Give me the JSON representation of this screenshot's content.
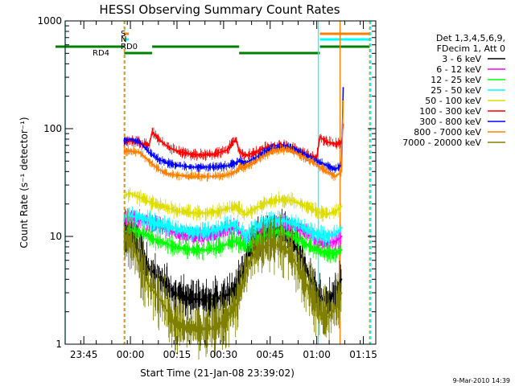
{
  "chart_data": {
    "type": "line",
    "title": "HESSI Observing Summary Count Rates",
    "xlabel": "Start Time (21-Jan-08 23:39:02)",
    "ylabel": "Count Rate (s⁻¹ detector⁻¹)",
    "x_unit": "minutes after start",
    "xlim": [
      0,
      100
    ],
    "ylim": [
      1,
      1000
    ],
    "y_scale": "log",
    "x_ticks": [
      {
        "x": 6,
        "label": "23:45"
      },
      {
        "x": 21,
        "label": "00:00"
      },
      {
        "x": 36,
        "label": "00:15"
      },
      {
        "x": 51,
        "label": "00:30"
      },
      {
        "x": 66,
        "label": "00:45"
      },
      {
        "x": 81,
        "label": "01:00"
      },
      {
        "x": 96,
        "label": "01:15"
      }
    ],
    "y_ticks": [
      {
        "y": 1,
        "label": "1"
      },
      {
        "y": 10,
        "label": "10"
      },
      {
        "y": 100,
        "label": "100"
      },
      {
        "y": 1000,
        "label": "1000"
      }
    ],
    "legend_header": [
      "Det 1,3,4,5,6,9,",
      "FDecim 1, Att 0"
    ],
    "legend_position": "right",
    "series": [
      {
        "name": "3 - 6 keV",
        "color": "#000000",
        "x": [
          19,
          20,
          22,
          24,
          27,
          31,
          35,
          39,
          43,
          47,
          51,
          55,
          57,
          59,
          61,
          64,
          67,
          70,
          73,
          76,
          79,
          81,
          83,
          85,
          87,
          89
        ],
        "y": [
          11,
          12,
          10,
          7,
          5,
          4,
          3,
          2.7,
          2.6,
          2.6,
          2.7,
          3.3,
          4.5,
          7,
          9,
          11,
          12,
          11,
          9,
          6.5,
          4,
          3,
          2.6,
          2.6,
          3,
          4
        ]
      },
      {
        "name": "6 - 12 keV",
        "color": "#ff00ff",
        "x": [
          19,
          21,
          24,
          27,
          30,
          33,
          35,
          37,
          41,
          45,
          49,
          52,
          55,
          58,
          61,
          64,
          67,
          70,
          73,
          76,
          79,
          81,
          84,
          87,
          89
        ],
        "y": [
          14,
          15,
          14.5,
          13.5,
          12.5,
          11.5,
          11,
          10.5,
          10,
          10,
          10.5,
          11.5,
          12,
          9.5,
          11,
          12.5,
          13.5,
          13.5,
          12.5,
          11.5,
          10,
          9,
          8.5,
          9,
          10
        ]
      },
      {
        "name": "12 - 25 keV",
        "color": "#00ff00",
        "x": [
          19,
          21,
          24,
          27,
          30,
          33,
          35,
          37,
          41,
          45,
          49,
          52,
          55,
          58,
          61,
          64,
          67,
          70,
          73,
          76,
          79,
          81,
          84,
          87,
          89
        ],
        "y": [
          11,
          11.5,
          11,
          10,
          9,
          8.5,
          8,
          7.8,
          7.5,
          7.5,
          7.8,
          8.5,
          9,
          8,
          9,
          10,
          11,
          11,
          10,
          9,
          8,
          7.5,
          7,
          7,
          7.5
        ]
      },
      {
        "name": "25 - 50 keV",
        "color": "#00ffff",
        "x": [
          19,
          21,
          24,
          27,
          30,
          33,
          35,
          37,
          41,
          45,
          49,
          52,
          55,
          58,
          61,
          64,
          67,
          70,
          73,
          76,
          79,
          81,
          84,
          87,
          89
        ],
        "y": [
          15,
          15.5,
          15,
          14,
          13,
          12.5,
          12,
          11.5,
          11,
          11,
          11.5,
          12.5,
          13,
          10,
          12,
          13.5,
          14,
          14,
          13.5,
          12.5,
          11,
          10.5,
          10,
          10.5,
          12
        ]
      },
      {
        "name": "50 - 100 keV",
        "color": "#dddd00",
        "x": [
          19,
          21,
          24,
          27,
          30,
          33,
          35,
          37,
          41,
          45,
          49,
          52,
          55,
          58,
          61,
          64,
          67,
          70,
          73,
          76,
          79,
          81,
          84,
          87,
          89
        ],
        "y": [
          24,
          25,
          23,
          21,
          19.5,
          18.5,
          17.5,
          17,
          16.5,
          16.5,
          17,
          18,
          19,
          16,
          18,
          20,
          21.5,
          22,
          21.5,
          20,
          18.5,
          17,
          16,
          17,
          19
        ]
      },
      {
        "name": "100 - 300 keV",
        "color": "#ff0000",
        "x": [
          19,
          21,
          24,
          27,
          28,
          30,
          33,
          36,
          40,
          44,
          48,
          52,
          55,
          56,
          58,
          61,
          64,
          67,
          70,
          73,
          76,
          79,
          81,
          82,
          84,
          87,
          89,
          89.5
        ],
        "y": [
          76,
          78,
          74,
          70,
          93,
          80,
          68,
          62,
          58,
          57,
          58,
          63,
          80,
          62,
          56,
          60,
          66,
          70,
          70,
          66,
          60,
          56,
          54,
          84,
          76,
          72,
          74,
          110
        ]
      },
      {
        "name": "300 - 800 keV",
        "color": "#0000ff",
        "x": [
          19,
          21,
          24,
          27,
          30,
          33,
          36,
          40,
          44,
          48,
          52,
          55,
          56,
          58,
          61,
          64,
          67,
          70,
          73,
          76,
          79,
          81,
          84,
          87,
          89,
          89.5
        ],
        "y": [
          78,
          80,
          75,
          60,
          52,
          48,
          46,
          44,
          44,
          44,
          45,
          48,
          50,
          48,
          53,
          60,
          66,
          68,
          66,
          60,
          54,
          50,
          46,
          42,
          46,
          240
        ]
      },
      {
        "name": "800 - 7000 keV",
        "color": "#ff8000",
        "x": [
          19,
          21,
          24,
          27,
          30,
          33,
          36,
          40,
          44,
          48,
          52,
          55,
          56,
          58,
          61,
          64,
          67,
          70,
          73,
          76,
          79,
          81,
          84,
          87,
          89,
          89.5
        ],
        "y": [
          62,
          62,
          60,
          50,
          42,
          38,
          37,
          36,
          36,
          36,
          37,
          40,
          44,
          44,
          49,
          56,
          62,
          64,
          62,
          56,
          50,
          46,
          40,
          36,
          40,
          180
        ]
      },
      {
        "name": "7000 - 20000 keV",
        "color": "#808000",
        "x": [
          19,
          20,
          22,
          24,
          27,
          31,
          35,
          39,
          43,
          47,
          51,
          55,
          57,
          59,
          61,
          64,
          67,
          70,
          73,
          76,
          79,
          81,
          83,
          85,
          87,
          89
        ],
        "y": [
          9,
          10,
          8,
          5.5,
          3.5,
          2.5,
          1.6,
          1.4,
          1.4,
          1.4,
          1.6,
          2.3,
          3.5,
          5.5,
          7,
          8,
          8.5,
          8,
          6.5,
          4.5,
          3,
          2.2,
          1.8,
          1.8,
          2.2,
          3
        ]
      }
    ],
    "flag_labels": [
      {
        "text": "S",
        "color": "#ff8000"
      },
      {
        "text": "N",
        "color": "#00ffff"
      },
      {
        "text": "RD0",
        "color": "#008000"
      },
      {
        "text": "RD4",
        "color": "#008000"
      }
    ],
    "flag_bars": [
      {
        "name": "S",
        "color": "#ff8000",
        "segments": [
          [
            19,
            20.5
          ],
          [
            82,
            98
          ]
        ]
      },
      {
        "name": "N",
        "color": "#00ffff",
        "segments": [
          [
            19,
            20.5
          ],
          [
            82,
            98
          ]
        ]
      },
      {
        "name": "RD0",
        "color": "#008000",
        "segments": [
          [
            -4,
            19
          ],
          [
            28,
            56
          ],
          [
            82,
            98
          ]
        ]
      },
      {
        "name": "RD4",
        "color": "#008000",
        "segments": [
          [
            19,
            28
          ],
          [
            56,
            82
          ]
        ]
      }
    ],
    "vertical_lines": [
      {
        "x": 0,
        "color": "#00ffff",
        "style": "solid"
      },
      {
        "x": 19,
        "color": "#ff8000",
        "style": "dashed"
      },
      {
        "x": 19.3,
        "color": "#00ffff",
        "style": "dashed"
      },
      {
        "x": 81.5,
        "color": "#00ffff",
        "style": "solid"
      },
      {
        "x": 88.5,
        "color": "#ff8000",
        "style": "solid"
      },
      {
        "x": 98,
        "color": "#ff8000",
        "style": "dashed"
      },
      {
        "x": 98.3,
        "color": "#00ffff",
        "style": "dashed"
      }
    ]
  },
  "timestamp": "9-Mar-2010 14:39"
}
